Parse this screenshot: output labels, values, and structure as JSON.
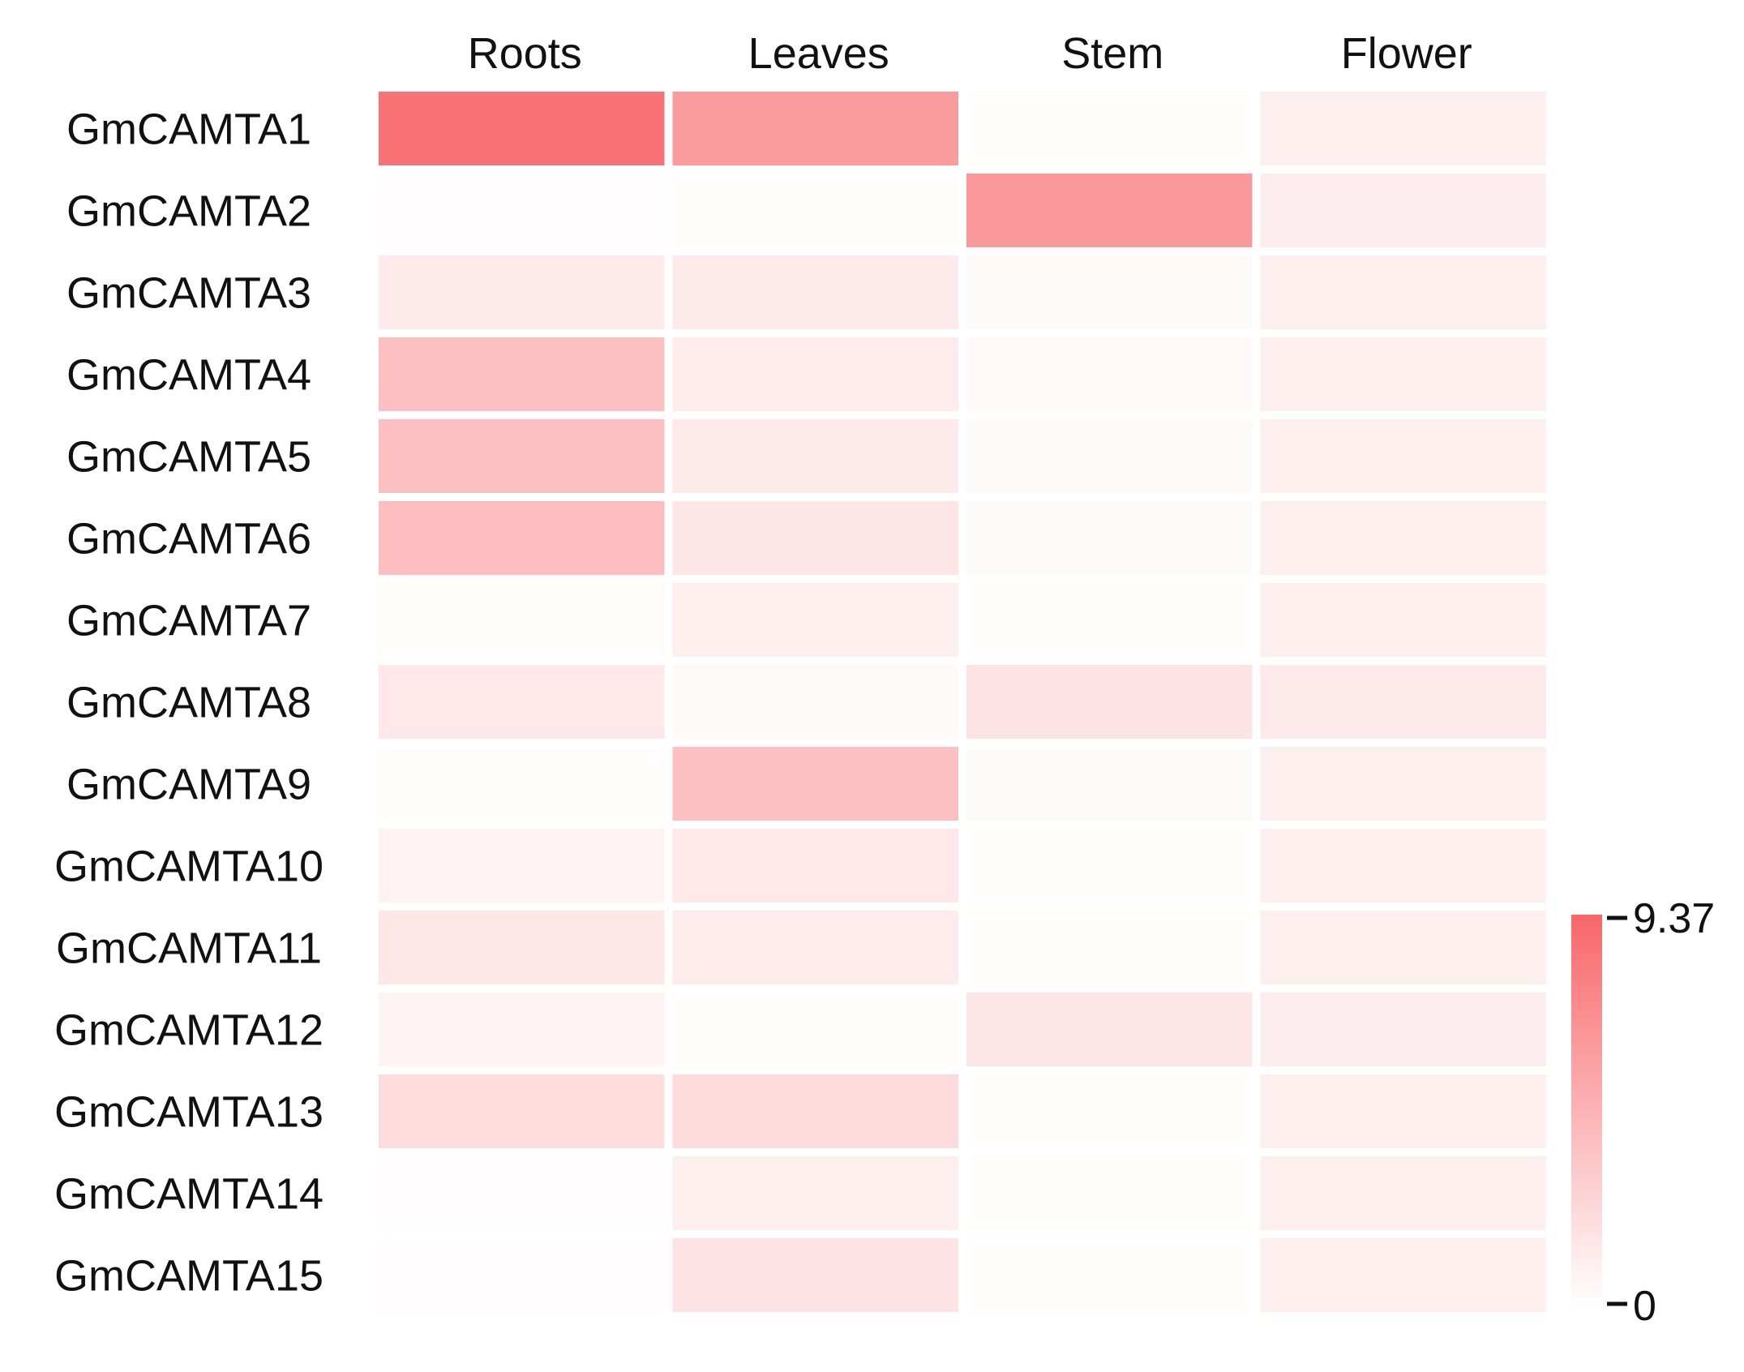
{
  "chart_data": {
    "type": "heatmap",
    "columns": [
      "Roots",
      "Leaves",
      "Stem",
      "Flower"
    ],
    "rows": [
      "GmCAMTA1",
      "GmCAMTA2",
      "GmCAMTA3",
      "GmCAMTA4",
      "GmCAMTA5",
      "GmCAMTA6",
      "GmCAMTA7",
      "GmCAMTA8",
      "GmCAMTA9",
      "GmCAMTA10",
      "GmCAMTA11",
      "GmCAMTA12",
      "GmCAMTA13",
      "GmCAMTA14",
      "GmCAMTA15"
    ],
    "values": [
      [
        8.6,
        6.1,
        0.2,
        1.0
      ],
      [
        0.1,
        0.2,
        6.3,
        1.1
      ],
      [
        1.3,
        1.3,
        0.3,
        1.0
      ],
      [
        3.9,
        1.2,
        0.4,
        1.0
      ],
      [
        3.9,
        1.3,
        0.3,
        1.0
      ],
      [
        4.0,
        1.6,
        0.3,
        1.0
      ],
      [
        0.2,
        1.0,
        0.2,
        1.0
      ],
      [
        1.4,
        0.3,
        1.7,
        1.3
      ],
      [
        0.2,
        3.9,
        0.3,
        1.0
      ],
      [
        0.8,
        1.4,
        0.2,
        1.0
      ],
      [
        1.5,
        1.2,
        0.2,
        1.0
      ],
      [
        0.7,
        0.2,
        1.6,
        1.1
      ],
      [
        2.1,
        2.2,
        0.2,
        1.0
      ],
      [
        0.1,
        1.0,
        0.2,
        1.0
      ],
      [
        0.1,
        1.7,
        0.2,
        1.0
      ]
    ],
    "colorscale": {
      "min": 0,
      "max": 9.37,
      "min_label": "0",
      "max_label": "9.37",
      "low_color": "#ffffff",
      "high_color": "#f8676a"
    },
    "legend_position": "right"
  }
}
